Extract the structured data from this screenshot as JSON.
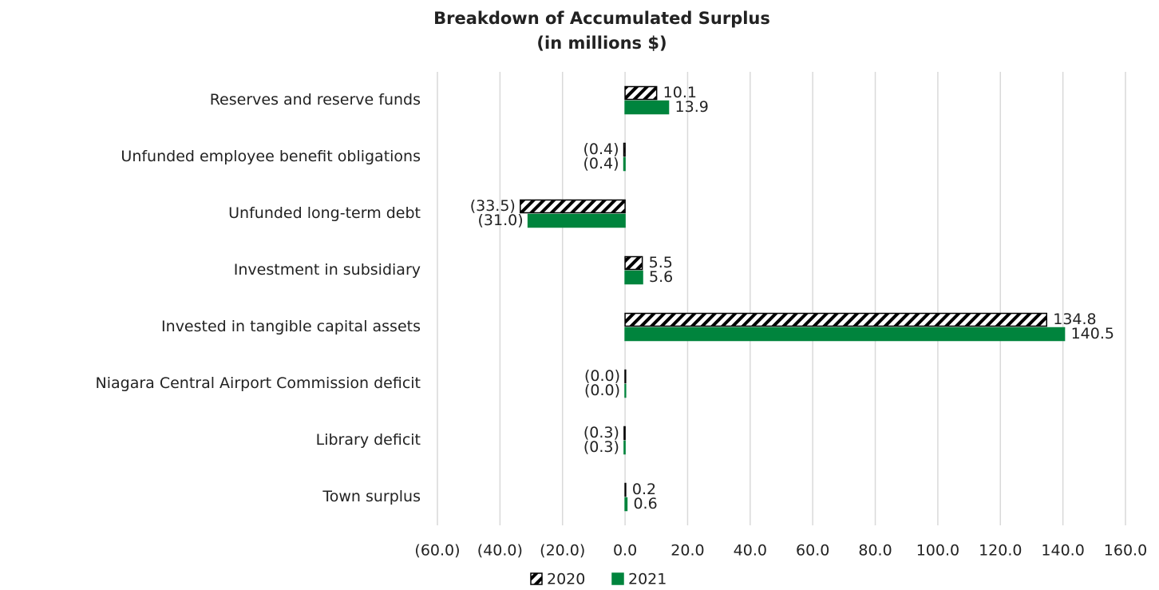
{
  "chart_data": {
    "type": "barh",
    "title": "Breakdown of Accumulated Surplus",
    "subtitle": "(in millions $)",
    "categories": [
      "Reserves and reserve funds",
      "Unfunded employee benefit obligations",
      "Unfunded long-term debt",
      "Investment in subsidiary",
      "Invested in tangible capital assets",
      "Niagara Central Airport Commission deficit",
      "Library deficit",
      "Town surplus"
    ],
    "series": [
      {
        "name": "2020",
        "color": "#000000",
        "pattern": "hatch",
        "values": [
          10.1,
          -0.4,
          -33.5,
          5.5,
          134.8,
          -0.02,
          -0.3,
          0.2
        ],
        "value_labels": [
          "10.1",
          "(0.4)",
          "(33.5)",
          "5.5",
          "134.8",
          "(0.0)",
          "(0.3)",
          "0.2"
        ]
      },
      {
        "name": "2021",
        "color": "#00843d",
        "values": [
          13.9,
          -0.4,
          -31.0,
          5.6,
          140.5,
          -0.02,
          -0.3,
          0.6
        ],
        "value_labels": [
          "13.9",
          "(0.4)",
          "(31.0)",
          "5.6",
          "140.5",
          "(0.0)",
          "(0.3)",
          "0.6"
        ]
      }
    ],
    "xlim": [
      -60,
      160
    ],
    "xticks": [
      {
        "value": -60,
        "label": "(60.0)"
      },
      {
        "value": -40,
        "label": "(40.0)"
      },
      {
        "value": -20,
        "label": "(20.0)"
      },
      {
        "value": 0,
        "label": "0.0"
      },
      {
        "value": 20,
        "label": "20.0"
      },
      {
        "value": 40,
        "label": "40.0"
      },
      {
        "value": 60,
        "label": "60.0"
      },
      {
        "value": 80,
        "label": "80.0"
      },
      {
        "value": 100,
        "label": "100.0"
      },
      {
        "value": 120,
        "label": "120.0"
      },
      {
        "value": 140,
        "label": "140.0"
      },
      {
        "value": 160,
        "label": "160.0"
      }
    ],
    "grid": true,
    "legend": "bottom"
  }
}
